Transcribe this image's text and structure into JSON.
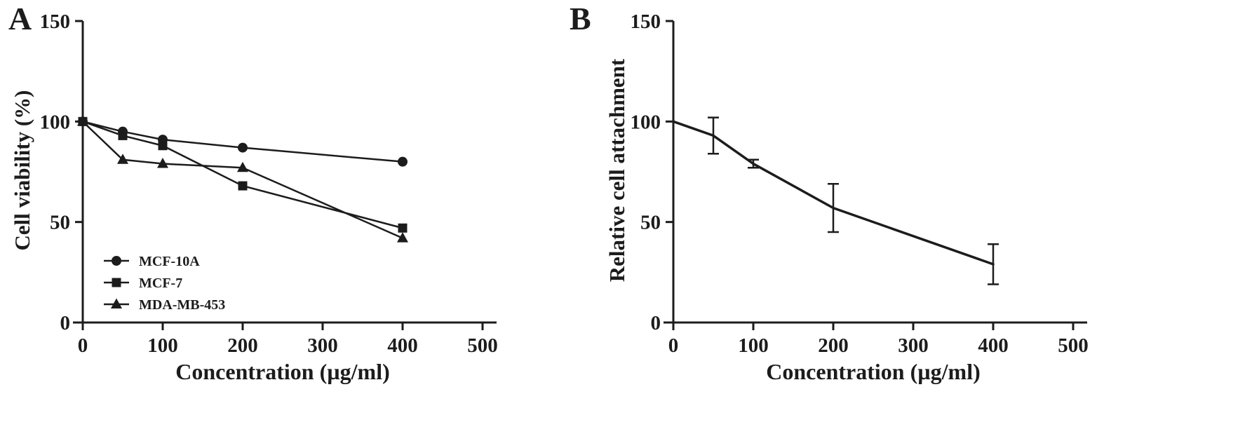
{
  "figure": {
    "background": "#ffffff",
    "ink": "#1c1c1c"
  },
  "chart_data": [
    {
      "type": "line",
      "panel_label": "A",
      "title": "",
      "xlabel": "Concentration (µg/ml)",
      "ylabel": "Cell viability (%)",
      "xlim": [
        0,
        500
      ],
      "ylim": [
        0,
        150
      ],
      "xticks": [
        0,
        100,
        200,
        300,
        400,
        500
      ],
      "yticks": [
        0,
        50,
        100,
        150
      ],
      "grid": false,
      "line_width": 2.5,
      "x": [
        0,
        50,
        100,
        200,
        400
      ],
      "series": [
        {
          "name": "MCF-10A",
          "marker": "circle",
          "values": [
            100,
            95,
            91,
            87,
            80
          ]
        },
        {
          "name": "MCF-7",
          "marker": "square",
          "values": [
            100,
            93,
            88,
            68,
            47
          ]
        },
        {
          "name": "MDA-MB-453",
          "marker": "triangle",
          "values": [
            100,
            81,
            79,
            77,
            42
          ]
        }
      ],
      "legend": {
        "show": true,
        "position": "lower-left",
        "entries": [
          "MCF-10A",
          "MCF-7",
          "MDA-MB-453"
        ]
      }
    },
    {
      "type": "line",
      "panel_label": "B",
      "title": "",
      "xlabel": "Concentration (µg/ml)",
      "ylabel": "Relative cell attachment",
      "xlim": [
        0,
        500
      ],
      "ylim": [
        0,
        150
      ],
      "xticks": [
        0,
        100,
        200,
        300,
        400,
        500
      ],
      "yticks": [
        0,
        50,
        100,
        150
      ],
      "grid": false,
      "line_width": 3.5,
      "x": [
        0,
        50,
        100,
        200,
        400
      ],
      "series": [
        {
          "name": "Relative cell attachment",
          "marker": "none",
          "values": [
            100,
            93,
            79,
            57,
            29
          ],
          "errors": [
            0,
            9,
            2,
            12,
            10
          ]
        }
      ],
      "legend": {
        "show": false,
        "position": "none",
        "entries": []
      }
    }
  ]
}
